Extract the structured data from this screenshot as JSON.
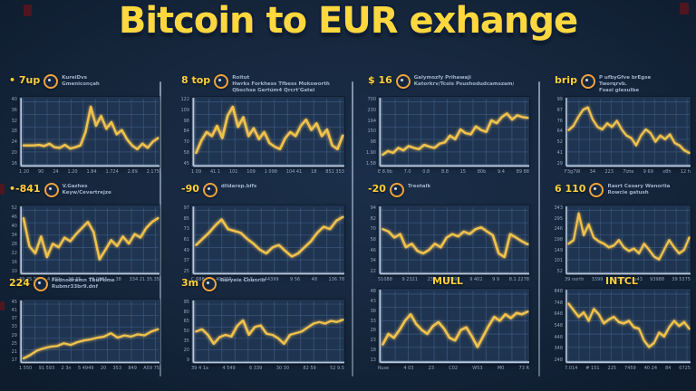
{
  "title": "Bitcoin to EUR exhange",
  "colors": {
    "background": "#16273d",
    "panel_plot": "#1f3450",
    "grid": "#3a597f",
    "axis": "#bcc9d9",
    "line": "#f1c24b",
    "ticker_yellow": "#ffcf3d",
    "title_yellow": "#ffd73e",
    "subtext_gray": "#9db1ca",
    "coin_orange": "#f0a33c",
    "divider": "#8ea2ba"
  },
  "panels": [
    {
      "label": "• 7up",
      "icon": "bitcoin-coin-icon",
      "align": "left",
      "subtext": [
        "KureiDvs",
        "Gmeniconçah"
      ]
    },
    {
      "label": "8 top",
      "icon": "bitcoin-coin-icon",
      "align": "left",
      "subtext": [
        "Roitut",
        "Hwrks Forkhess Tfbess Moksworth",
        "Qbschse Gertúm4 Qrcrt'Gatei"
      ]
    },
    {
      "label": "$ 16",
      "icon": "arrow-coin-icon",
      "align": "left",
      "subtext": [
        "Galymozfy Prihawaji",
        "Katorkrv/Tcois Psushodudcamszam/Ty"
      ]
    },
    {
      "label": "brip",
      "icon": "c-coin-icon",
      "align": "left",
      "subtext": [
        "P ufbyGfve brEgse",
        "Tworqrvb.",
        "Fsasi glesulbe"
      ]
    },
    {
      "label": "•-841",
      "icon": "bullseye-coin-icon",
      "align": "left",
      "subtext": [
        "V.Gazhes",
        "Keyw/Cevartrejze"
      ]
    },
    {
      "label": "-90",
      "icon": "c-coin-icon",
      "align": "left",
      "subtext": [
        "dildarep.bifs"
      ]
    },
    {
      "label": "-20",
      "icon": "b-coin-icon",
      "align": "left",
      "subtext": [
        "Treotalk"
      ]
    },
    {
      "label": "6 110",
      "icon": "b-coin-icon",
      "align": "left",
      "subtext": [
        "Rasrt Cesary Wanorlia",
        "Rowcie gatush"
      ]
    },
    {
      "label": "224",
      "icon": "bullseye-coin-icon",
      "align": "left",
      "subtext": [
        "Fednodramn TbuPome",
        "Rubmr33br9.dnf"
      ]
    },
    {
      "label": "3m",
      "icon": "c-coin-icon",
      "align": "left",
      "subtext": [
        "Raryeie Counrib"
      ]
    },
    {
      "label": "MULL",
      "align": "center",
      "subtext": []
    },
    {
      "label": "INTCL",
      "align": "center",
      "subtext": []
    }
  ],
  "chart_data": [
    {
      "type": "line",
      "name": "7up",
      "ylim": [
        0,
        100
      ],
      "values": [
        30,
        30,
        30,
        31,
        29,
        33,
        27,
        26,
        31,
        25,
        27,
        30,
        52,
        93,
        62,
        78,
        57,
        68,
        48,
        55,
        40,
        30,
        24,
        33,
        26,
        36,
        42
      ],
      "y_ticks": [
        "40",
        "36",
        "32",
        "28",
        "24",
        "20",
        "16"
      ],
      "x_ticks": [
        "1 20",
        "90",
        "24",
        "1.20",
        "1.84",
        "1.724",
        "2.89",
        "2.175"
      ]
    },
    {
      "type": "line",
      "name": "8 top",
      "ylim": [
        0,
        100
      ],
      "values": [
        18,
        38,
        52,
        45,
        62,
        42,
        78,
        93,
        60,
        76,
        45,
        58,
        40,
        52,
        34,
        28,
        24,
        42,
        52,
        45,
        62,
        72,
        55,
        66,
        45,
        56,
        30,
        24,
        46
      ],
      "y_ticks": [
        "122",
        "109",
        "98",
        "84",
        "70",
        "58",
        "45"
      ],
      "x_ticks": [
        "1 09",
        "41 1",
        "101",
        "109",
        "1 098",
        "104 41",
        "18",
        "851 353"
      ]
    },
    {
      "type": "line",
      "name": "$ 16",
      "ylim": [
        0,
        100
      ],
      "values": [
        15,
        21,
        18,
        26,
        22,
        29,
        26,
        24,
        31,
        28,
        26,
        33,
        35,
        46,
        40,
        56,
        50,
        48,
        61,
        55,
        52,
        71,
        66,
        76,
        82,
        72,
        79,
        76,
        75
      ],
      "y_ticks": [
        "700",
        "230",
        "194",
        "150",
        "98",
        "1.90",
        "1.58"
      ],
      "x_ticks": [
        "E 8.9b",
        "7.0",
        "0.8",
        "8.8",
        "15",
        "80b",
        "9.4",
        "89 88"
      ]
    },
    {
      "type": "line",
      "name": "brip",
      "ylim": [
        0,
        100
      ],
      "values": [
        55,
        62,
        76,
        88,
        92,
        72,
        60,
        56,
        66,
        60,
        70,
        56,
        46,
        42,
        30,
        46,
        56,
        50,
        36,
        46,
        40,
        48,
        34,
        30,
        22,
        18
      ],
      "y_ticks": [
        "99",
        "87",
        "76",
        "64",
        "52",
        "41",
        "29"
      ],
      "x_ticks": [
        "F3g7W",
        "34",
        "223",
        "7izte",
        "9 69",
        "x8h",
        "12 h"
      ]
    },
    {
      "type": "line",
      "name": "-841",
      "ylim": [
        0,
        100
      ],
      "values": [
        88,
        42,
        30,
        58,
        24,
        46,
        40,
        56,
        50,
        62,
        72,
        82,
        65,
        20,
        36,
        52,
        42,
        58,
        46,
        62,
        56,
        72,
        82,
        88
      ],
      "y_ticks": [
        "52",
        "46",
        "40",
        "34",
        "28",
        "22",
        "16",
        "10"
      ],
      "x_ticks": [
        "39 25.32",
        "4 239",
        "32 35",
        "29 9085",
        "38",
        "334 21 35.35"
      ]
    },
    {
      "type": "line",
      "name": "-90",
      "ylim": [
        0,
        100
      ],
      "values": [
        44,
        54,
        64,
        76,
        86,
        70,
        67,
        64,
        54,
        46,
        36,
        30,
        40,
        44,
        34,
        25,
        30,
        40,
        50,
        64,
        74,
        70,
        84,
        90
      ],
      "y_ticks": [
        "97",
        "85",
        "73",
        "61",
        "49",
        "37",
        "25"
      ],
      "x_ticks": [
        "C.688",
        "49 259",
        "23 5",
        "44399",
        "9 56",
        "48",
        "136 78"
      ]
    },
    {
      "type": "line",
      "name": "-20",
      "ylim": [
        0,
        100
      ],
      "values": [
        70,
        66,
        56,
        62,
        40,
        46,
        34,
        30,
        36,
        46,
        40,
        56,
        62,
        58,
        66,
        62,
        70,
        73,
        66,
        60,
        30,
        24,
        62,
        56,
        50,
        45
      ],
      "y_ticks": [
        "94",
        "82",
        "70",
        "58",
        "46",
        "34",
        "22"
      ],
      "x_ticks": [
        "51088",
        "9 2321",
        "235",
        "22094",
        "9 402",
        "9 9",
        "8.1 2278"
      ]
    },
    {
      "type": "line",
      "name": "6 110",
      "ylim": [
        0,
        100
      ],
      "values": [
        46,
        52,
        96,
        60,
        78,
        56,
        50,
        46,
        40,
        43,
        52,
        40,
        34,
        38,
        30,
        46,
        36,
        25,
        20,
        36,
        52,
        40,
        30,
        36,
        56
      ],
      "y_ticks": [
        "343",
        "295",
        "246",
        "198",
        "149",
        "101",
        "52"
      ],
      "x_ticks": [
        "39 north",
        "3399",
        "49 343",
        "u43",
        "93988",
        "39 5375"
      ]
    },
    {
      "type": "line",
      "name": "224",
      "ylim": [
        0,
        100
      ],
      "values": [
        4,
        10,
        18,
        22,
        25,
        26,
        31,
        28,
        33,
        36,
        38,
        41,
        43,
        49,
        41,
        45,
        43,
        47,
        45,
        52,
        56
      ],
      "y_ticks": [
        "45",
        "41",
        "37",
        "33",
        "29",
        "25",
        "21",
        "17"
      ],
      "x_ticks": [
        "1 550",
        "91 593",
        "2 3n",
        "5 4949",
        "20",
        "353",
        "849",
        "A59 75"
      ]
    },
    {
      "type": "line",
      "name": "3m",
      "ylim": [
        0,
        100
      ],
      "values": [
        52,
        56,
        46,
        30,
        42,
        46,
        43,
        62,
        72,
        46,
        60,
        63,
        48,
        46,
        40,
        30,
        46,
        49,
        52,
        59,
        66,
        69,
        66,
        71,
        69,
        73
      ],
      "y_ticks": [
        "95",
        "80",
        "65",
        "50",
        "35",
        "20",
        "9"
      ],
      "x_ticks": [
        "39 4 1a",
        "4 549",
        "6 339",
        "30 30",
        "82 59",
        "52 9.5"
      ]
    },
    {
      "type": "line",
      "name": "MULL",
      "ylim": [
        0,
        100
      ],
      "values": [
        24,
        40,
        34,
        46,
        60,
        70,
        55,
        46,
        40,
        52,
        58,
        48,
        34,
        30,
        46,
        50,
        36,
        20,
        36,
        52,
        66,
        60,
        70,
        64,
        72,
        70,
        74
      ],
      "y_ticks": [
        "48",
        "43",
        "38",
        "33",
        "28",
        "23",
        "18",
        "13"
      ],
      "x_ticks": [
        "Ruse",
        "4 03",
        "23",
        "C02",
        "W53",
        "M0",
        "73 R"
      ]
    },
    {
      "type": "line",
      "name": "INTCL",
      "ylim": [
        0,
        100
      ],
      "values": [
        86,
        76,
        66,
        73,
        60,
        78,
        70,
        56,
        62,
        66,
        58,
        56,
        60,
        50,
        48,
        30,
        20,
        26,
        42,
        36,
        50,
        60,
        52,
        58,
        48
      ],
      "y_ticks": [
        "848",
        "748",
        "648",
        "548",
        "448",
        "348",
        "248"
      ],
      "x_ticks": [
        "7.014",
        "# 151",
        "225",
        "7459",
        "40 24",
        "84",
        "0725"
      ]
    }
  ]
}
